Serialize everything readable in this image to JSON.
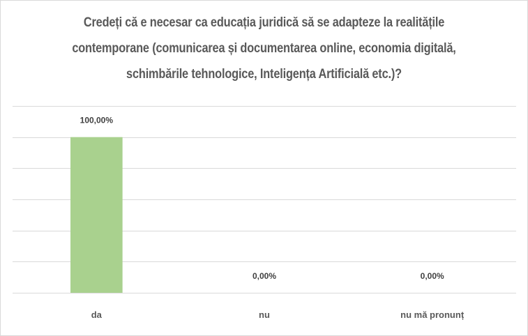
{
  "chart_data": {
    "type": "bar",
    "title": "Credeți că e necesar ca educația juridică să se adapteze la realitățile contemporane (comunicarea și documentarea online, economia digitală, schimbările tehnologice, Inteligența Artificială etc.)?",
    "title_lines": [
      "Credeți că e necesar ca educația juridică să se adapteze la realitățile",
      "contemporane (comunicarea și documentarea online, economia digitală,",
      "schimbările tehnologice, Inteligența Artificială etc.)?"
    ],
    "categories": [
      "da",
      "nu",
      "nu mă pronunț"
    ],
    "values": [
      100,
      0,
      0
    ],
    "data_labels": [
      "100,00%",
      "0,00%",
      "0,00%"
    ],
    "ylim": [
      0,
      120
    ],
    "ystep": 20,
    "grid": true,
    "legend": "none",
    "colors": {
      "bar": "#a9d18e",
      "grid": "#d9d9d9",
      "text": "#595959"
    }
  }
}
